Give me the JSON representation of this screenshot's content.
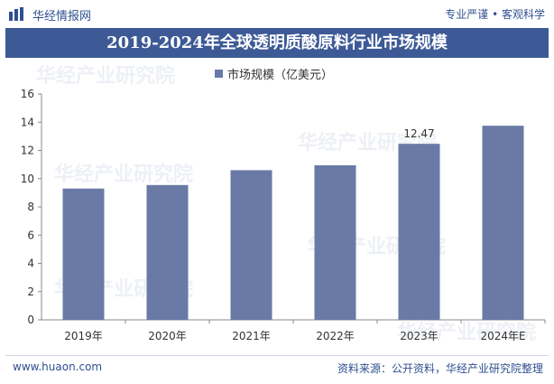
{
  "header": {
    "brand": "华经情报网",
    "tagline": "专业严谨 • 客观科学"
  },
  "watermark": "华经产业研究院",
  "chart_data": {
    "type": "bar",
    "title": "2019-2024年全球透明质酸原料行业市场规模",
    "legend": "市场规模（亿美元）",
    "categories": [
      "2019年",
      "2020年",
      "2021年",
      "2022年",
      "2023年",
      "2024年E"
    ],
    "values": [
      9.3,
      9.55,
      10.6,
      10.95,
      12.47,
      13.75
    ],
    "data_labels": [
      null,
      null,
      null,
      null,
      "12.47",
      null
    ],
    "ylim": [
      0,
      16
    ],
    "yticks": [
      0,
      2,
      4,
      6,
      8,
      10,
      12,
      14,
      16
    ],
    "xlabel": "",
    "ylabel": "",
    "bar_color": "#6a7aa6",
    "grid": false
  },
  "footer": {
    "website": "www.huaon.com",
    "source": "资料来源：公开资料，华经产业研究院整理"
  }
}
